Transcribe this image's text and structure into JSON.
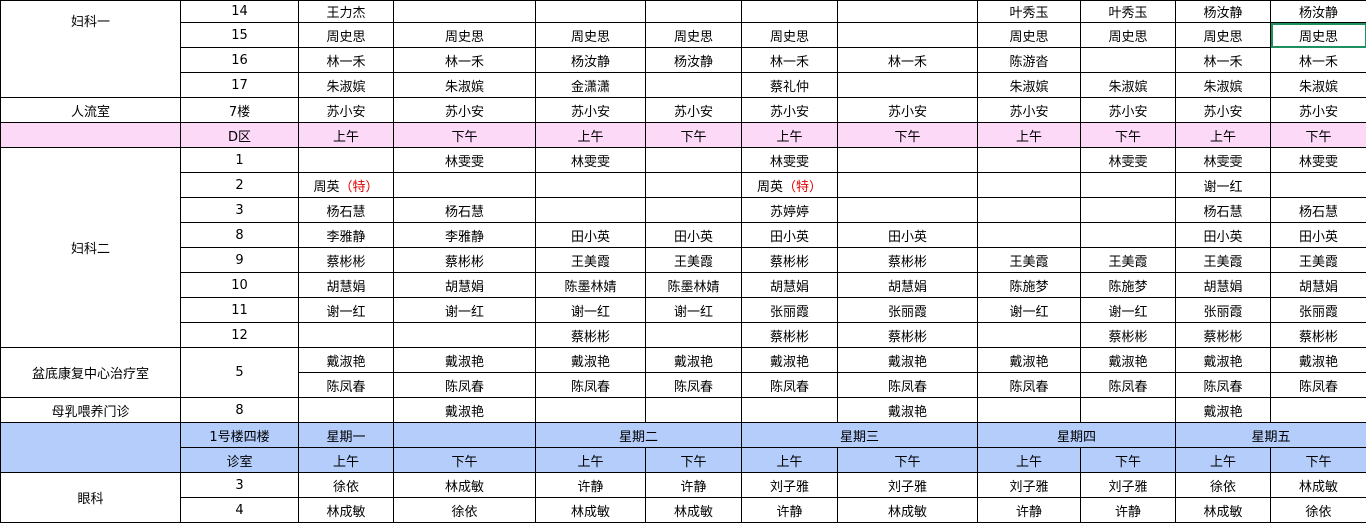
{
  "colors": {
    "pink_row": "#fdd9f8",
    "header_blue": "#b4cdfb",
    "selection": "#1f8f5f",
    "special_note": "#e00000"
  },
  "selected_cell": {
    "section": "gyn1",
    "row": 1,
    "slot": 9
  },
  "gyn1": {
    "dept": "妇科一",
    "rows": [
      {
        "room": "14",
        "slots": [
          "王力杰",
          "",
          "",
          "",
          "",
          "",
          "叶秀玉",
          "叶秀玉",
          "杨汝静",
          "杨汝静"
        ]
      },
      {
        "room": "15",
        "slots": [
          "周史思",
          "周史思",
          "周史思",
          "周史思",
          "周史思",
          "",
          "周史思",
          "周史思",
          "周史思",
          "周史思"
        ]
      },
      {
        "room": "16",
        "slots": [
          "林一禾",
          "林一禾",
          "杨汝静",
          "杨汝静",
          "林一禾",
          "林一禾",
          "陈游沓",
          "",
          "林一禾",
          "林一禾"
        ]
      },
      {
        "room": "17",
        "slots": [
          "朱淑嫔",
          "朱淑嫔",
          "金潇潇",
          "",
          "蔡礼仲",
          "",
          "朱淑嫔",
          "朱淑嫔",
          "朱淑嫔",
          "朱淑嫔"
        ]
      }
    ]
  },
  "abortion": {
    "dept": "人流室",
    "room": "7楼",
    "slots": [
      "苏小安",
      "苏小安",
      "苏小安",
      "苏小安",
      "苏小安",
      "苏小安",
      "苏小安",
      "苏小安",
      "苏小安",
      "苏小安"
    ]
  },
  "zone_d": {
    "label": "D区",
    "slots": [
      "上午",
      "下午",
      "上午",
      "下午",
      "上午",
      "下午",
      "上午",
      "下午",
      "上午",
      "下午"
    ]
  },
  "gyn2": {
    "dept": "妇科二",
    "rows": [
      {
        "room": "1",
        "slots": [
          "",
          "林雯雯",
          "林雯雯",
          "",
          "林雯雯",
          "",
          "",
          "林雯雯",
          "林雯雯",
          "林雯雯"
        ]
      },
      {
        "room": "2",
        "slots": [
          {
            "name": "周英",
            "note": "（特）"
          },
          "",
          "",
          "",
          {
            "name": "周英",
            "note": "（特）"
          },
          "",
          "",
          "",
          "谢一红",
          ""
        ]
      },
      {
        "room": "3",
        "slots": [
          "杨石慧",
          "杨石慧",
          "",
          "",
          "苏婷婷",
          "",
          "",
          "",
          "杨石慧",
          "杨石慧"
        ]
      },
      {
        "room": "8",
        "slots": [
          "李雅静",
          "李雅静",
          "田小英",
          "田小英",
          "田小英",
          "田小英",
          "",
          "",
          "田小英",
          "田小英"
        ]
      },
      {
        "room": "9",
        "slots": [
          "蔡彬彬",
          "蔡彬彬",
          "王美霞",
          "王美霞",
          "蔡彬彬",
          "蔡彬彬",
          "王美霞",
          "王美霞",
          "王美霞",
          "王美霞"
        ]
      },
      {
        "room": "10",
        "slots": [
          "胡慧娟",
          "胡慧娟",
          "陈墨林婧",
          "陈墨林婧",
          "胡慧娟",
          "胡慧娟",
          "陈施梦",
          "陈施梦",
          "胡慧娟",
          "胡慧娟"
        ]
      },
      {
        "room": "11",
        "slots": [
          "谢一红",
          "谢一红",
          "谢一红",
          "谢一红",
          "张丽霞",
          "张丽霞",
          "谢一红",
          "谢一红",
          "张丽霞",
          "张丽霞"
        ]
      },
      {
        "room": "12",
        "slots": [
          "",
          "",
          "蔡彬彬",
          "",
          "蔡彬彬",
          "蔡彬彬",
          "",
          "蔡彬彬",
          "蔡彬彬",
          "蔡彬彬"
        ]
      }
    ]
  },
  "pelvic": {
    "dept": "盆底康复中心治疗室",
    "room": "5",
    "rows": [
      {
        "slots": [
          "戴淑艳",
          "戴淑艳",
          "戴淑艳",
          "戴淑艳",
          "戴淑艳",
          "戴淑艳",
          "戴淑艳",
          "戴淑艳",
          "戴淑艳",
          "戴淑艳"
        ]
      },
      {
        "slots": [
          "陈凤春",
          "陈凤春",
          "陈凤春",
          "陈凤春",
          "陈凤春",
          "陈凤春",
          "陈凤春",
          "陈凤春",
          "陈凤春",
          "陈凤春"
        ]
      }
    ]
  },
  "breastfeeding": {
    "dept": "母乳喂养门诊",
    "room": "8",
    "slots": [
      "",
      "戴淑艳",
      "",
      "",
      "",
      "戴淑艳",
      "",
      "",
      "戴淑艳",
      ""
    ]
  },
  "header": {
    "building": "1号楼四楼",
    "room_label": "诊室",
    "days": [
      "星期一",
      "星期二",
      "星期三",
      "星期四",
      "星期五"
    ],
    "periods": [
      "上午",
      "下午",
      "上午",
      "下午",
      "上午",
      "下午",
      "上午",
      "下午",
      "上午",
      "下午"
    ]
  },
  "eye": {
    "dept": "眼科",
    "rows": [
      {
        "room": "3",
        "slots": [
          "徐依",
          "林成敏",
          "许静",
          "许静",
          "刘子雅",
          "刘子雅",
          "刘子雅",
          "刘子雅",
          "徐依",
          "林成敏"
        ]
      },
      {
        "room": "4",
        "slots": [
          "林成敏",
          "徐依",
          "林成敏",
          "林成敏",
          "许静",
          "林成敏",
          "许静",
          "许静",
          "林成敏",
          "徐依"
        ]
      }
    ]
  }
}
